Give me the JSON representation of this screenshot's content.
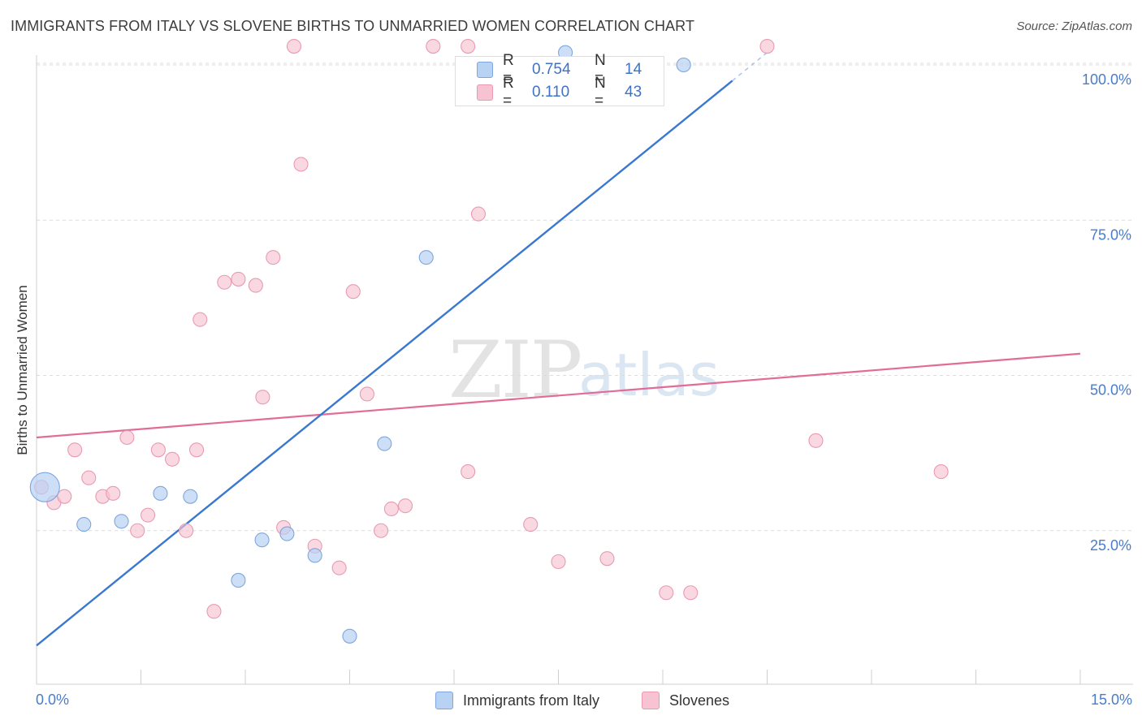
{
  "header": {
    "title": "IMMIGRANTS FROM ITALY VS SLOVENE BIRTHS TO UNMARRIED WOMEN CORRELATION CHART",
    "source": "Source: ZipAtlas.com"
  },
  "watermark": {
    "zip": "ZIP",
    "atlas": "atlas"
  },
  "legend": {
    "rows": [
      {
        "r_label": "R =",
        "r_value": "0.754",
        "n_label": "N =",
        "n_value": "14",
        "color": "#b8d2f3"
      },
      {
        "r_label": "R =",
        "r_value": "0.110",
        "n_label": "N =",
        "n_value": "43",
        "color": "#f7c3d2"
      }
    ]
  },
  "chart_data": {
    "type": "scatter",
    "title": "IMMIGRANTS FROM ITALY VS SLOVENE BIRTHS TO UNMARRIED WOMEN CORRELATION CHART",
    "xlabel": "",
    "ylabel": "Births to Unmarried Women",
    "xlim": [
      0,
      15
    ],
    "ylim": [
      0,
      105
    ],
    "x_tick_labels": {
      "min": "0.0%",
      "max": "15.0%"
    },
    "y_ticks": [
      {
        "value": 25,
        "label": "25.0%"
      },
      {
        "value": 50,
        "label": "50.0%"
      },
      {
        "value": 75,
        "label": "75.0%"
      },
      {
        "value": 100,
        "label": "100.0%"
      }
    ],
    "colors": {
      "italy_fill": "#b8d2f3",
      "italy_stroke": "#7ea6dd",
      "italy_line": "#3a78d0",
      "slovene_fill": "#f7c3d2",
      "slovene_stroke": "#e99ab3",
      "slovene_line": "#e26c97"
    },
    "series": [
      {
        "name": "Immigrants from Italy",
        "points": [
          [
            0.12,
            32
          ],
          [
            0.68,
            26
          ],
          [
            1.22,
            26.5
          ],
          [
            1.78,
            31
          ],
          [
            2.21,
            30.5
          ],
          [
            2.9,
            17
          ],
          [
            3.24,
            23.5
          ],
          [
            3.6,
            24.5
          ],
          [
            4.0,
            21
          ],
          [
            4.5,
            8
          ],
          [
            5.0,
            39
          ],
          [
            5.6,
            69
          ],
          [
            7.6,
            102
          ],
          [
            9.3,
            100
          ]
        ],
        "trend": {
          "x0": 0,
          "y0": 6.5,
          "x1": 10.5,
          "y1": 102
        }
      },
      {
        "name": "Slovenes",
        "points": [
          [
            0.07,
            32
          ],
          [
            0.25,
            29.5
          ],
          [
            0.4,
            30.5
          ],
          [
            0.55,
            38
          ],
          [
            0.75,
            33.5
          ],
          [
            0.95,
            30.5
          ],
          [
            1.1,
            31
          ],
          [
            1.3,
            40
          ],
          [
            1.45,
            25
          ],
          [
            1.6,
            27.5
          ],
          [
            1.75,
            38
          ],
          [
            1.95,
            36.5
          ],
          [
            2.15,
            25
          ],
          [
            2.3,
            38
          ],
          [
            2.35,
            59
          ],
          [
            2.55,
            12
          ],
          [
            2.7,
            65
          ],
          [
            2.9,
            65.5
          ],
          [
            3.15,
            64.5
          ],
          [
            3.25,
            46.5
          ],
          [
            3.4,
            69
          ],
          [
            3.55,
            25.5
          ],
          [
            3.7,
            103
          ],
          [
            3.8,
            84
          ],
          [
            4.0,
            22.5
          ],
          [
            4.35,
            19
          ],
          [
            4.55,
            63.5
          ],
          [
            4.75,
            47
          ],
          [
            4.95,
            25
          ],
          [
            5.1,
            28.5
          ],
          [
            5.3,
            29
          ],
          [
            5.7,
            103
          ],
          [
            6.2,
            34.5
          ],
          [
            6.35,
            76
          ],
          [
            7.1,
            26
          ],
          [
            7.5,
            20
          ],
          [
            8.2,
            20.5
          ],
          [
            9.05,
            15
          ],
          [
            9.4,
            15
          ],
          [
            10.5,
            103
          ],
          [
            11.2,
            39.5
          ],
          [
            13.0,
            34.5
          ],
          [
            6.2,
            103
          ]
        ],
        "trend": {
          "x0": 0,
          "y0": 40,
          "x1": 15,
          "y1": 53.5
        }
      }
    ]
  },
  "bottom_legend": [
    {
      "label": "Immigrants from Italy",
      "color": "#b8d2f3",
      "stroke": "#7ea6dd"
    },
    {
      "label": "Slovenes",
      "color": "#f7c3d2",
      "stroke": "#e99ab3"
    }
  ]
}
